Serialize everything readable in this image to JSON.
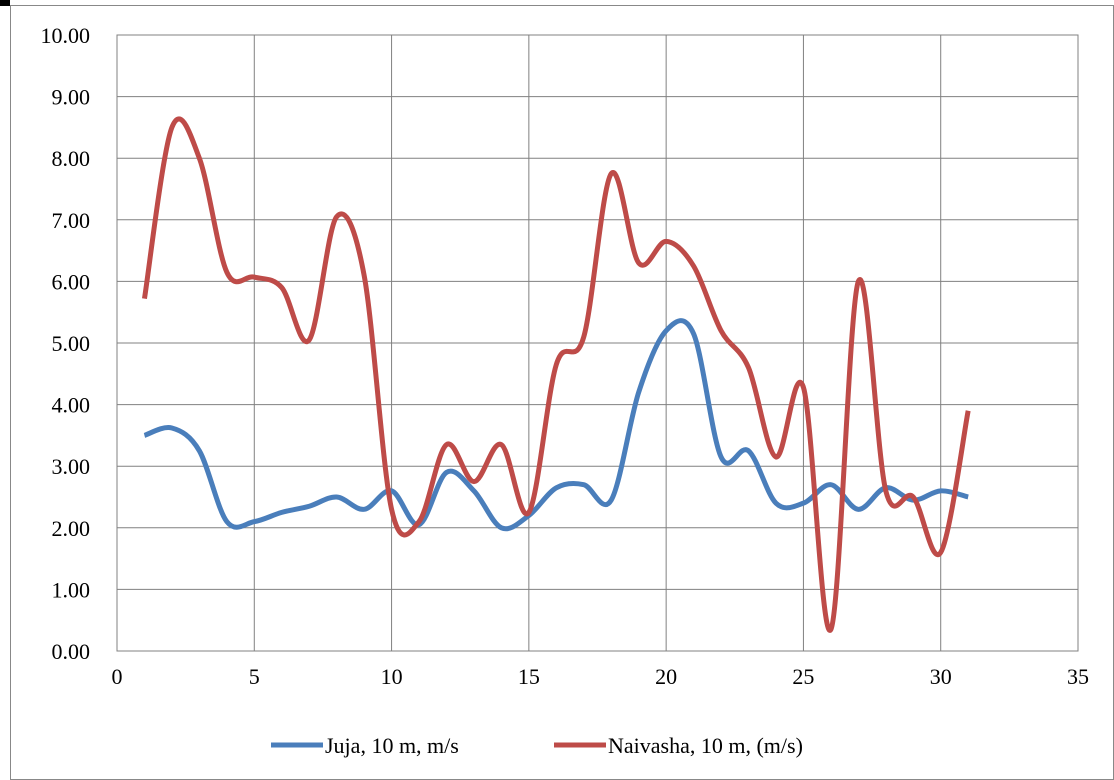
{
  "chart_data": {
    "type": "line",
    "smooth": true,
    "title": "",
    "xlabel": "",
    "ylabel": "",
    "xlim": [
      0,
      35
    ],
    "ylim": [
      0,
      10
    ],
    "x_ticks": [
      0,
      5,
      10,
      15,
      20,
      25,
      30,
      35
    ],
    "y_ticks": [
      0,
      1,
      2,
      3,
      4,
      5,
      6,
      7,
      8,
      9,
      10
    ],
    "y_tick_labels": [
      "0.00",
      "1.00",
      "2.00",
      "3.00",
      "4.00",
      "5.00",
      "6.00",
      "7.00",
      "8.00",
      "9.00",
      "10.00"
    ],
    "grid": true,
    "legend_position": "bottom",
    "x": [
      1,
      2,
      3,
      4,
      5,
      6,
      7,
      8,
      9,
      10,
      11,
      12,
      13,
      14,
      15,
      16,
      17,
      18,
      19,
      20,
      21,
      22,
      23,
      24,
      25,
      26,
      27,
      28,
      29,
      30,
      31
    ],
    "series": [
      {
        "name": "Juja, 10 m, m/s",
        "color": "#4a7ebb",
        "values": [
          3.5,
          3.62,
          3.25,
          2.1,
          2.1,
          2.25,
          2.35,
          2.5,
          2.3,
          2.6,
          2.05,
          2.9,
          2.6,
          2.0,
          2.2,
          2.65,
          2.7,
          2.45,
          4.2,
          5.2,
          5.15,
          3.15,
          3.25,
          2.4,
          2.4,
          2.7,
          2.3,
          2.65,
          2.45,
          2.6,
          2.5
        ]
      },
      {
        "name": "Naivasha, 10 m, (m/s)",
        "color": "#be4b48",
        "values": [
          5.72,
          8.5,
          8.0,
          6.15,
          6.07,
          5.9,
          5.05,
          7.05,
          6.1,
          2.3,
          2.1,
          3.35,
          2.75,
          3.35,
          2.25,
          4.65,
          5.1,
          7.75,
          6.3,
          6.65,
          6.25,
          5.2,
          4.6,
          3.15,
          4.28,
          0.35,
          6.0,
          2.6,
          2.5,
          1.6,
          3.9
        ]
      }
    ]
  }
}
